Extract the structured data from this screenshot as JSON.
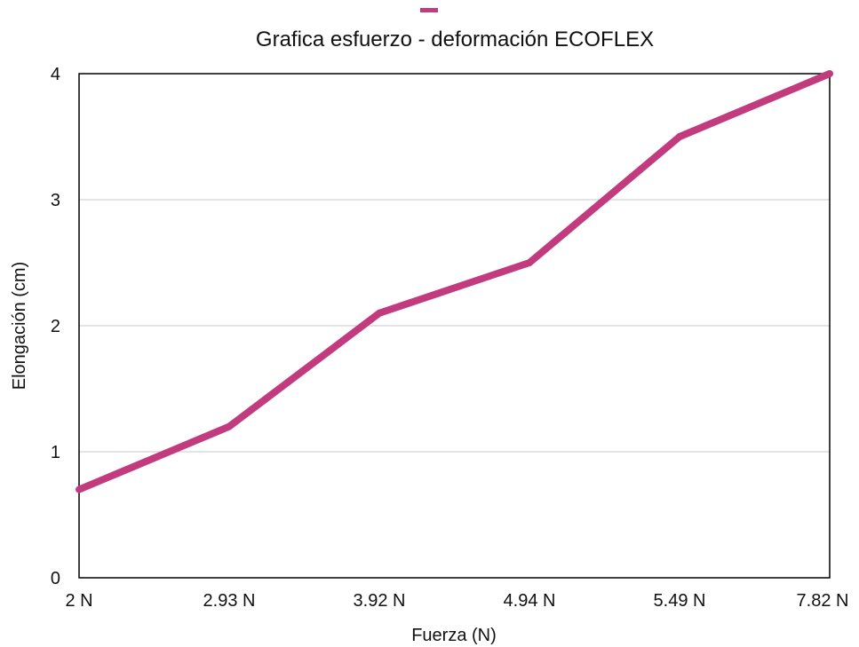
{
  "chart_data": {
    "type": "line",
    "title": "Grafica esfuerzo - deformación ECOFLEX",
    "xlabel": "Fuerza (N)",
    "ylabel": "Elongación (cm)",
    "categories": [
      "2 N",
      "2.93 N",
      "3.92 N",
      "4.94 N",
      "5.49 N",
      "7.82 N"
    ],
    "series": [
      {
        "values": [
          0.7,
          1.2,
          2.1,
          2.5,
          3.5,
          4.0
        ]
      }
    ],
    "ylim": [
      0,
      4
    ],
    "yticks": [
      "0",
      "1",
      "2",
      "3",
      "4"
    ],
    "grid": "horizontal",
    "legend": "top-center",
    "colors": {
      "series": "#c13b7e",
      "grid": "#c8c8c8",
      "frame": "#000000"
    }
  }
}
